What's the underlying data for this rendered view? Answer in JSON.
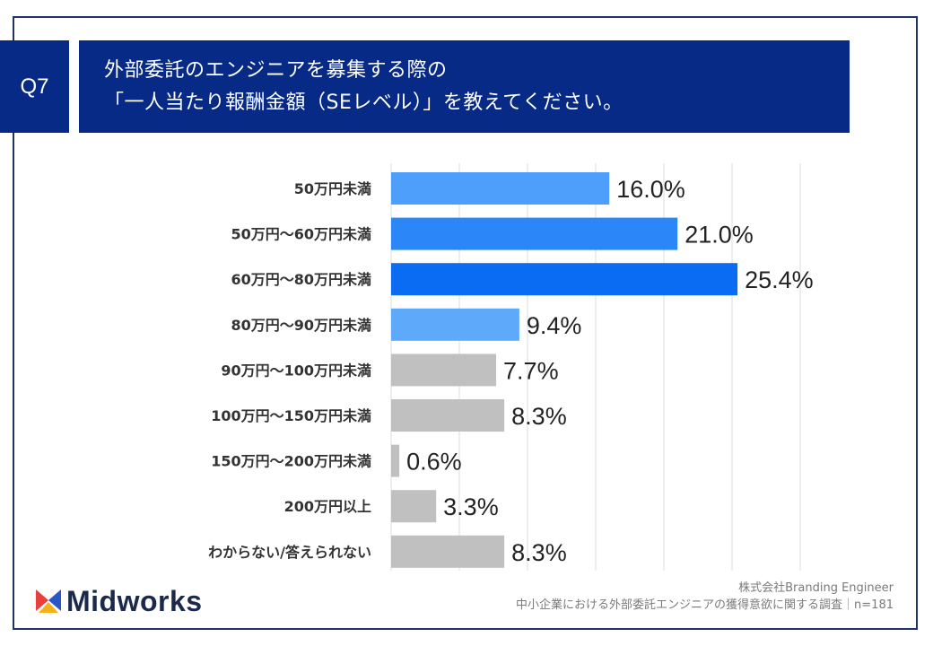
{
  "question": {
    "badge": "Q7",
    "title_line1": "外部委託のエンジニアを募集する際の",
    "title_line2": "「一人当たり報酬金額（SEレベル）」を教えてください。"
  },
  "footer": {
    "company": "株式会社Branding Engineer",
    "survey": "中小企業における外部委託エンジニアの獲得意欲に関する調査｜n=181"
  },
  "logo": {
    "text": "Midworks",
    "icon": "midworks-logo-icon"
  },
  "chart_data": {
    "type": "bar",
    "orientation": "horizontal",
    "categories": [
      "50万円未満",
      "50万円～60万円未満",
      "60万円～80万円未満",
      "80万円～90万円未満",
      "90万円～100万円未満",
      "100万円～150万円未満",
      "150万円～200万円未満",
      "200万円以上",
      "わからない/答えられない"
    ],
    "values": [
      16.0,
      21.0,
      25.4,
      9.4,
      7.7,
      8.3,
      0.6,
      3.3,
      8.3
    ],
    "labels": [
      "16.0%",
      "21.0%",
      "25.4%",
      "9.4%",
      "7.7%",
      "8.3%",
      "0.6%",
      "3.3%",
      "8.3%"
    ],
    "colors": [
      "#4d9ffb",
      "#2b87f8",
      "#0a6cf2",
      "#5fa9fa",
      "#c0c0c0",
      "#c0c0c0",
      "#c0c0c0",
      "#c0c0c0",
      "#c0c0c0"
    ],
    "xlim": [
      0,
      30
    ],
    "grid": true,
    "legend": "none"
  }
}
